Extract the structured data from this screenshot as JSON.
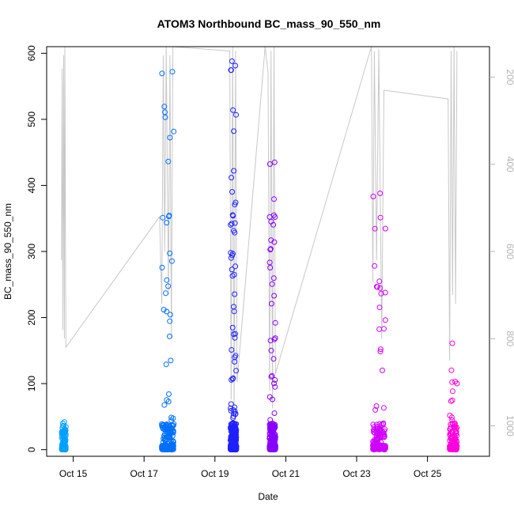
{
  "chart_data": {
    "type": "scatter",
    "title": "ATOM3 Northbound BC_mass_90_550_nm",
    "xlabel": "Date",
    "ylabel": "BC_mass_90_550_nm",
    "xlim": [
      "2017-10-14T06:00",
      "2017-10-26T18:00"
    ],
    "ylim": [
      -10,
      610
    ],
    "x_ticks": [
      {
        "label": "Oct 15",
        "date": "2017-10-15"
      },
      {
        "label": "Oct 17",
        "date": "2017-10-17"
      },
      {
        "label": "Oct 19",
        "date": "2017-10-19"
      },
      {
        "label": "Oct 21",
        "date": "2017-10-21"
      },
      {
        "label": "Oct 23",
        "date": "2017-10-23"
      },
      {
        "label": "Oct 25",
        "date": "2017-10-25"
      }
    ],
    "y_ticks": [
      0,
      100,
      200,
      300,
      400,
      500,
      600
    ],
    "y2_axis": {
      "side": "right",
      "color": "#b3b3b3",
      "reversed": true,
      "range": [
        1070,
        130
      ],
      "ticks": [
        200,
        400,
        600,
        800,
        1000
      ]
    },
    "grid": false,
    "legend": "none",
    "flights": [
      {
        "start": "2017-10-14T16:10",
        "end": "2017-10-14T19:00",
        "color": "#00a0ff",
        "max": 42,
        "n": 140
      },
      {
        "start": "2017-10-17T12:00",
        "end": "2017-10-17T20:10",
        "color": "#0070ff",
        "max": 572,
        "n": 260
      },
      {
        "start": "2017-10-19T10:30",
        "end": "2017-10-19T14:30",
        "color": "#2020ff",
        "max": 588,
        "n": 420
      },
      {
        "start": "2017-10-20T13:00",
        "end": "2017-10-20T17:00",
        "color": "#8800ff",
        "max": 435,
        "n": 320
      },
      {
        "start": "2017-10-23T11:00",
        "end": "2017-10-23T19:30",
        "color": "#d000ff",
        "max": 388,
        "n": 200
      },
      {
        "start": "2017-10-25T15:00",
        "end": "2017-10-25T20:00",
        "color": "#ff00dd",
        "max": 161,
        "n": 180
      }
    ],
    "altitude_series": {
      "color": "#c8c8c8",
      "points": [
        [
          "2017-10-14T16:00",
          620
        ],
        [
          "2017-10-14T16:30",
          180
        ],
        [
          "2017-10-14T17:00",
          780
        ],
        [
          "2017-10-14T17:30",
          150
        ],
        [
          "2017-10-14T18:00",
          800
        ],
        [
          "2017-10-14T18:20",
          130
        ],
        [
          "2017-10-14T19:00",
          820
        ],
        [
          "2017-10-17T10:30",
          520
        ],
        [
          "2017-10-17T12:00",
          720
        ],
        [
          "2017-10-17T13:00",
          150
        ],
        [
          "2017-10-17T14:00",
          600
        ],
        [
          "2017-10-17T15:00",
          130
        ],
        [
          "2017-10-17T16:30",
          700
        ],
        [
          "2017-10-17T17:30",
          150
        ],
        [
          "2017-10-17T18:30",
          800
        ],
        [
          "2017-10-17T19:30",
          130
        ],
        [
          "2017-10-19T10:00",
          140
        ],
        [
          "2017-10-19T11:00",
          940
        ],
        [
          "2017-10-19T12:00",
          130
        ],
        [
          "2017-10-19T13:00",
          960
        ],
        [
          "2017-10-19T14:00",
          140
        ],
        [
          "2017-10-19T15:00",
          900
        ],
        [
          "2017-10-20T10:00",
          130
        ],
        [
          "2017-10-20T12:00",
          190
        ],
        [
          "2017-10-20T13:00",
          920
        ],
        [
          "2017-10-20T14:00",
          140
        ],
        [
          "2017-10-20T15:00",
          960
        ],
        [
          "2017-10-20T16:00",
          130
        ],
        [
          "2017-10-20T17:00",
          880
        ],
        [
          "2017-10-23T10:00",
          130
        ],
        [
          "2017-10-23T11:00",
          670
        ],
        [
          "2017-10-23T12:00",
          140
        ],
        [
          "2017-10-23T13:30",
          620
        ],
        [
          "2017-10-23T15:00",
          135
        ],
        [
          "2017-10-23T17:00",
          800
        ],
        [
          "2017-10-23T18:30",
          230
        ],
        [
          "2017-10-25T14:00",
          250
        ],
        [
          "2017-10-25T15:00",
          850
        ],
        [
          "2017-10-25T16:00",
          140
        ],
        [
          "2017-10-25T17:00",
          700
        ],
        [
          "2017-10-25T18:00",
          130
        ],
        [
          "2017-10-25T19:00",
          720
        ],
        [
          "2017-10-25T20:00",
          140
        ]
      ]
    }
  }
}
